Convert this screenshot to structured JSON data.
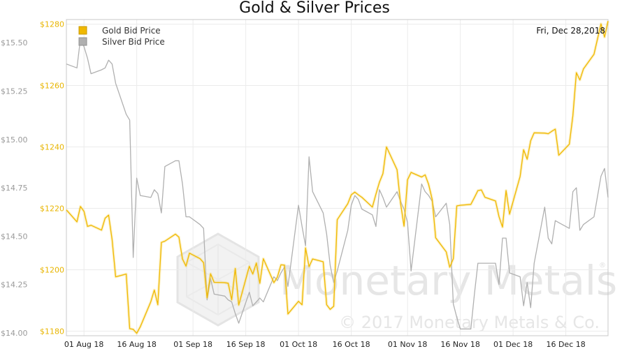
{
  "chart_data": {
    "type": "line",
    "title": "Gold & Silver Prices",
    "date_label": "Fri, Dec 28,2018",
    "x_tick_labels": [
      "01 Aug 18",
      "16 Aug 18",
      "01 Sep 18",
      "16 Sep 18",
      "01 Oct 18",
      "16 Oct 18",
      "01 Nov 18",
      "16 Nov 18",
      "01 Dec 18",
      "16 Dec 18"
    ],
    "x_range": [
      "2018-07-27",
      "2018-12-28"
    ],
    "y_left_ticks": [
      "$1280",
      "$1260",
      "$1240",
      "$1220",
      "$1200",
      "$1180"
    ],
    "y_left_range": [
      1178.5,
      1281.5
    ],
    "y_right_ticks": [
      "$15.50",
      "$15.25",
      "$15.00",
      "$14.75",
      "$14.50",
      "$14.25",
      "$14.00"
    ],
    "y_right_range": [
      13.985,
      15.62
    ],
    "grid": true,
    "legend_position": "top-left",
    "watermark": {
      "brand": "Monetary Metals",
      "copyright": "© 2017 Monetary Metals & Co.",
      "registered": "®"
    },
    "series": [
      {
        "name": "Gold Bid Price",
        "axis": "left",
        "color": "#f0b800",
        "points": [
          [
            "2018-07-27",
            1219.5
          ],
          [
            "2018-07-30",
            1215.6
          ],
          [
            "2018-07-31",
            1220.6
          ],
          [
            "2018-08-01",
            1219.0
          ],
          [
            "2018-08-02",
            1214.1
          ],
          [
            "2018-08-03",
            1214.5
          ],
          [
            "2018-08-06",
            1212.9
          ],
          [
            "2018-08-07",
            1216.8
          ],
          [
            "2018-08-08",
            1217.8
          ],
          [
            "2018-08-09",
            1209.8
          ],
          [
            "2018-08-10",
            1197.7
          ],
          [
            "2018-08-13",
            1198.6
          ],
          [
            "2018-08-14",
            1180.8
          ],
          [
            "2018-08-15",
            1180.6
          ],
          [
            "2018-08-16",
            1179.3
          ],
          [
            "2018-08-17",
            1181.4
          ],
          [
            "2018-08-20",
            1189.6
          ],
          [
            "2018-08-21",
            1193.4
          ],
          [
            "2018-08-22",
            1188.6
          ],
          [
            "2018-08-23",
            1208.9
          ],
          [
            "2018-08-24",
            1209.3
          ],
          [
            "2018-08-27",
            1211.6
          ],
          [
            "2018-08-28",
            1210.6
          ],
          [
            "2018-08-29",
            1203.5
          ],
          [
            "2018-08-30",
            1201.2
          ],
          [
            "2018-08-31",
            1205.4
          ],
          [
            "2018-09-03",
            1203.6
          ],
          [
            "2018-09-04",
            1202.3
          ],
          [
            "2018-09-05",
            1190.9
          ],
          [
            "2018-09-06",
            1198.7
          ],
          [
            "2018-09-07",
            1195.9
          ],
          [
            "2018-09-10",
            1195.8
          ],
          [
            "2018-09-11",
            1195.6
          ],
          [
            "2018-09-12",
            1190.2
          ],
          [
            "2018-09-13",
            1200.4
          ],
          [
            "2018-09-14",
            1188.5
          ],
          [
            "2018-09-17",
            1201.1
          ],
          [
            "2018-09-18",
            1198.6
          ],
          [
            "2018-09-19",
            1202.2
          ],
          [
            "2018-09-20",
            1195.6
          ],
          [
            "2018-09-21",
            1203.6
          ],
          [
            "2018-09-24",
            1195.8
          ],
          [
            "2018-09-25",
            1197.6
          ],
          [
            "2018-09-26",
            1201.6
          ],
          [
            "2018-09-27",
            1201.5
          ],
          [
            "2018-09-28",
            1185.6
          ],
          [
            "2018-10-01",
            1189.7
          ],
          [
            "2018-10-02",
            1188.6
          ],
          [
            "2018-10-03",
            1207.1
          ],
          [
            "2018-10-04",
            1201.0
          ],
          [
            "2018-10-05",
            1203.5
          ],
          [
            "2018-10-08",
            1202.6
          ],
          [
            "2018-10-09",
            1188.6
          ],
          [
            "2018-10-10",
            1187.1
          ],
          [
            "2018-10-11",
            1188.1
          ],
          [
            "2018-10-12",
            1216.3
          ],
          [
            "2018-10-15",
            1221.5
          ],
          [
            "2018-10-16",
            1224.4
          ],
          [
            "2018-10-17",
            1225.3
          ],
          [
            "2018-10-18",
            1224.4
          ],
          [
            "2018-10-19",
            1223.6
          ],
          [
            "2018-10-22",
            1220.4
          ],
          [
            "2018-10-23",
            1224.6
          ],
          [
            "2018-10-24",
            1228.5
          ],
          [
            "2018-10-25",
            1231.3
          ],
          [
            "2018-10-26",
            1240.0
          ],
          [
            "2018-10-29",
            1232.6
          ],
          [
            "2018-10-30",
            1221.7
          ],
          [
            "2018-10-31",
            1214.2
          ],
          [
            "2018-11-01",
            1229.3
          ],
          [
            "2018-11-02",
            1231.7
          ],
          [
            "2018-11-05",
            1230.2
          ],
          [
            "2018-11-06",
            1230.9
          ],
          [
            "2018-11-07",
            1227.8
          ],
          [
            "2018-11-08",
            1222.9
          ],
          [
            "2018-11-09",
            1210.4
          ],
          [
            "2018-11-12",
            1205.8
          ],
          [
            "2018-11-13",
            1200.8
          ],
          [
            "2018-11-14",
            1203.6
          ],
          [
            "2018-11-15",
            1220.8
          ],
          [
            "2018-11-16",
            1221.0
          ],
          [
            "2018-11-19",
            1221.3
          ],
          [
            "2018-11-20",
            1223.5
          ],
          [
            "2018-11-21",
            1225.8
          ],
          [
            "2018-11-22",
            1226.0
          ],
          [
            "2018-11-23",
            1223.6
          ],
          [
            "2018-11-26",
            1222.4
          ],
          [
            "2018-11-27",
            1217.3
          ],
          [
            "2018-11-28",
            1213.9
          ],
          [
            "2018-11-29",
            1225.8
          ],
          [
            "2018-11-30",
            1218.1
          ],
          [
            "2018-12-03",
            1230.4
          ],
          [
            "2018-12-04",
            1239.1
          ],
          [
            "2018-12-05",
            1236.0
          ],
          [
            "2018-12-06",
            1242.0
          ],
          [
            "2018-12-07",
            1244.6
          ],
          [
            "2018-12-10",
            1244.5
          ],
          [
            "2018-12-11",
            1244.3
          ],
          [
            "2018-12-12",
            1245.1
          ],
          [
            "2018-12-13",
            1245.8
          ],
          [
            "2018-12-14",
            1237.3
          ],
          [
            "2018-12-17",
            1240.9
          ],
          [
            "2018-12-18",
            1250.2
          ],
          [
            "2018-12-19",
            1264.2
          ],
          [
            "2018-12-20",
            1261.8
          ],
          [
            "2018-12-21",
            1265.4
          ],
          [
            "2018-12-24",
            1270.2
          ],
          [
            "2018-12-26",
            1280.1
          ],
          [
            "2018-12-27",
            1275.8
          ],
          [
            "2018-12-28",
            1281.0
          ]
        ]
      },
      {
        "name": "Silver Bid Price",
        "axis": "right",
        "color": "#b0b0b0",
        "points": [
          [
            "2018-07-27",
            15.39
          ],
          [
            "2018-07-30",
            15.37
          ],
          [
            "2018-07-31",
            15.52
          ],
          [
            "2018-08-01",
            15.48
          ],
          [
            "2018-08-02",
            15.42
          ],
          [
            "2018-08-03",
            15.34
          ],
          [
            "2018-08-06",
            15.36
          ],
          [
            "2018-08-07",
            15.37
          ],
          [
            "2018-08-08",
            15.41
          ],
          [
            "2018-08-09",
            15.39
          ],
          [
            "2018-08-10",
            15.29
          ],
          [
            "2018-08-13",
            15.13
          ],
          [
            "2018-08-14",
            15.1
          ],
          [
            "2018-08-15",
            14.39
          ],
          [
            "2018-08-16",
            14.8
          ],
          [
            "2018-08-17",
            14.71
          ],
          [
            "2018-08-20",
            14.7
          ],
          [
            "2018-08-21",
            14.74
          ],
          [
            "2018-08-22",
            14.72
          ],
          [
            "2018-08-23",
            14.62
          ],
          [
            "2018-08-24",
            14.86
          ],
          [
            "2018-08-27",
            14.89
          ],
          [
            "2018-08-28",
            14.89
          ],
          [
            "2018-08-29",
            14.77
          ],
          [
            "2018-08-30",
            14.6
          ],
          [
            "2018-08-31",
            14.6
          ],
          [
            "2018-09-03",
            14.56
          ],
          [
            "2018-09-04",
            14.54
          ],
          [
            "2018-09-05",
            14.17
          ],
          [
            "2018-09-06",
            14.28
          ],
          [
            "2018-09-07",
            14.2
          ],
          [
            "2018-09-10",
            14.19
          ],
          [
            "2018-09-11",
            14.17
          ],
          [
            "2018-09-12",
            14.16
          ],
          [
            "2018-09-13",
            14.1
          ],
          [
            "2018-09-14",
            14.05
          ],
          [
            "2018-09-17",
            14.21
          ],
          [
            "2018-09-18",
            14.14
          ],
          [
            "2018-09-19",
            14.16
          ],
          [
            "2018-09-20",
            14.18
          ],
          [
            "2018-09-21",
            14.16
          ],
          [
            "2018-09-24",
            14.29
          ],
          [
            "2018-09-25",
            14.27
          ],
          [
            "2018-09-26",
            14.31
          ],
          [
            "2018-09-27",
            14.34
          ],
          [
            "2018-09-28",
            14.24
          ],
          [
            "2018-10-01",
            14.66
          ],
          [
            "2018-10-02",
            14.55
          ],
          [
            "2018-10-03",
            14.45
          ],
          [
            "2018-10-04",
            14.91
          ],
          [
            "2018-10-05",
            14.73
          ],
          [
            "2018-10-08",
            14.62
          ],
          [
            "2018-10-09",
            14.51
          ],
          [
            "2018-10-10",
            14.35
          ],
          [
            "2018-10-11",
            14.26
          ],
          [
            "2018-10-12",
            14.32
          ],
          [
            "2018-10-15",
            14.53
          ],
          [
            "2018-10-16",
            14.66
          ],
          [
            "2018-10-17",
            14.71
          ],
          [
            "2018-10-18",
            14.69
          ],
          [
            "2018-10-19",
            14.64
          ],
          [
            "2018-10-22",
            14.61
          ],
          [
            "2018-10-23",
            14.55
          ],
          [
            "2018-10-24",
            14.74
          ],
          [
            "2018-10-25",
            14.7
          ],
          [
            "2018-10-26",
            14.65
          ],
          [
            "2018-10-29",
            14.73
          ],
          [
            "2018-10-30",
            14.68
          ],
          [
            "2018-10-31",
            14.64
          ],
          [
            "2018-11-01",
            14.57
          ],
          [
            "2018-11-02",
            14.32
          ],
          [
            "2018-11-05",
            14.77
          ],
          [
            "2018-11-06",
            14.73
          ],
          [
            "2018-11-07",
            14.71
          ],
          [
            "2018-11-08",
            14.68
          ],
          [
            "2018-11-09",
            14.6
          ],
          [
            "2018-11-12",
            14.67
          ],
          [
            "2018-11-13",
            14.56
          ],
          [
            "2018-11-14",
            14.15
          ],
          [
            "2018-11-15",
            14.08
          ],
          [
            "2018-11-16",
            14.02
          ],
          [
            "2018-11-19",
            14.02
          ],
          [
            "2018-11-20",
            14.2
          ],
          [
            "2018-11-21",
            14.36
          ],
          [
            "2018-11-22",
            14.36
          ],
          [
            "2018-11-23",
            14.36
          ],
          [
            "2018-11-26",
            14.36
          ],
          [
            "2018-11-27",
            14.25
          ],
          [
            "2018-11-28",
            14.49
          ],
          [
            "2018-11-29",
            14.49
          ],
          [
            "2018-11-30",
            14.31
          ],
          [
            "2018-12-03",
            14.29
          ],
          [
            "2018-12-04",
            14.14
          ],
          [
            "2018-12-05",
            14.26
          ],
          [
            "2018-12-06",
            14.13
          ],
          [
            "2018-12-07",
            14.36
          ],
          [
            "2018-12-10",
            14.65
          ],
          [
            "2018-12-11",
            14.49
          ],
          [
            "2018-12-12",
            14.46
          ],
          [
            "2018-12-13",
            14.58
          ],
          [
            "2018-12-14",
            14.57
          ],
          [
            "2018-12-17",
            14.54
          ],
          [
            "2018-12-18",
            14.73
          ],
          [
            "2018-12-19",
            14.75
          ],
          [
            "2018-12-20",
            14.53
          ],
          [
            "2018-12-21",
            14.56
          ],
          [
            "2018-12-24",
            14.6
          ],
          [
            "2018-12-26",
            14.81
          ],
          [
            "2018-12-27",
            14.85
          ],
          [
            "2018-12-28",
            14.7
          ]
        ]
      }
    ]
  }
}
